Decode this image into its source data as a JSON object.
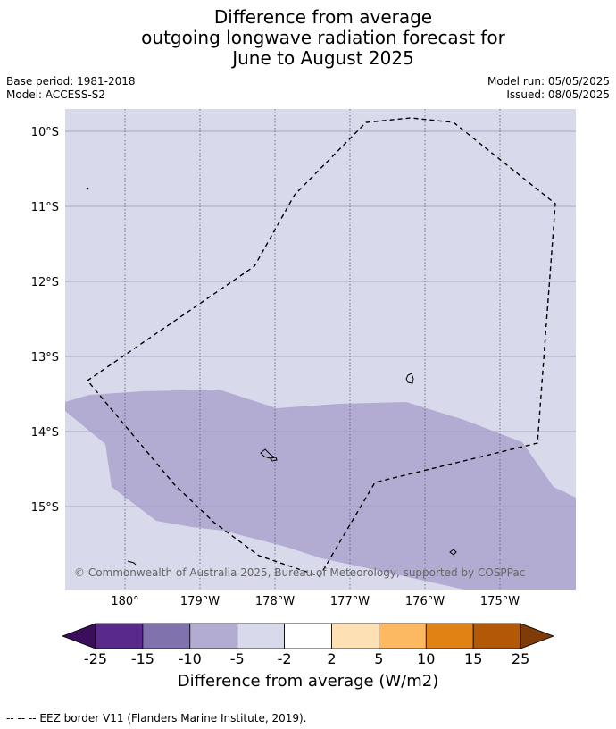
{
  "title": {
    "line1": "Difference from average",
    "line2": "outgoing longwave radiation forecast for",
    "line3": "June to August 2025"
  },
  "meta": {
    "base_period": "Base period: 1981-2018",
    "model": "Model: ACCESS-S2",
    "model_run": "Model run: 05/05/2025",
    "issued": "Issued: 08/05/2025"
  },
  "map": {
    "lat_labels": [
      "10°S",
      "11°S",
      "12°S",
      "13°S",
      "14°S",
      "15°S"
    ],
    "lon_labels": [
      "180°",
      "179°W",
      "178°W",
      "177°W",
      "176°W",
      "175°W"
    ],
    "copyright": "© Commonwealth of Australia 2025, Bureau of Meteorology, supported by COSPPac",
    "background_category": "-5 to -2",
    "anomaly_region_category": "-10 to -5",
    "eez_label": "EEZ border"
  },
  "colorbar": {
    "title": "Difference from average (W/m2)",
    "ticks": [
      "-25",
      "-15",
      "-10",
      "-5",
      "-2",
      "2",
      "5",
      "10",
      "15",
      "25"
    ],
    "colors": [
      "#3c0d5a",
      "#5a2a8a",
      "#8072ac",
      "#b2acd3",
      "#d8d9eb",
      "#ffffff",
      "#fee0b5",
      "#fdb862",
      "#e08214",
      "#b35807",
      "#7f3b08"
    ]
  },
  "footnote": "--  --  -- EEZ border V11 (Flanders Marine Institute, 2019)."
}
